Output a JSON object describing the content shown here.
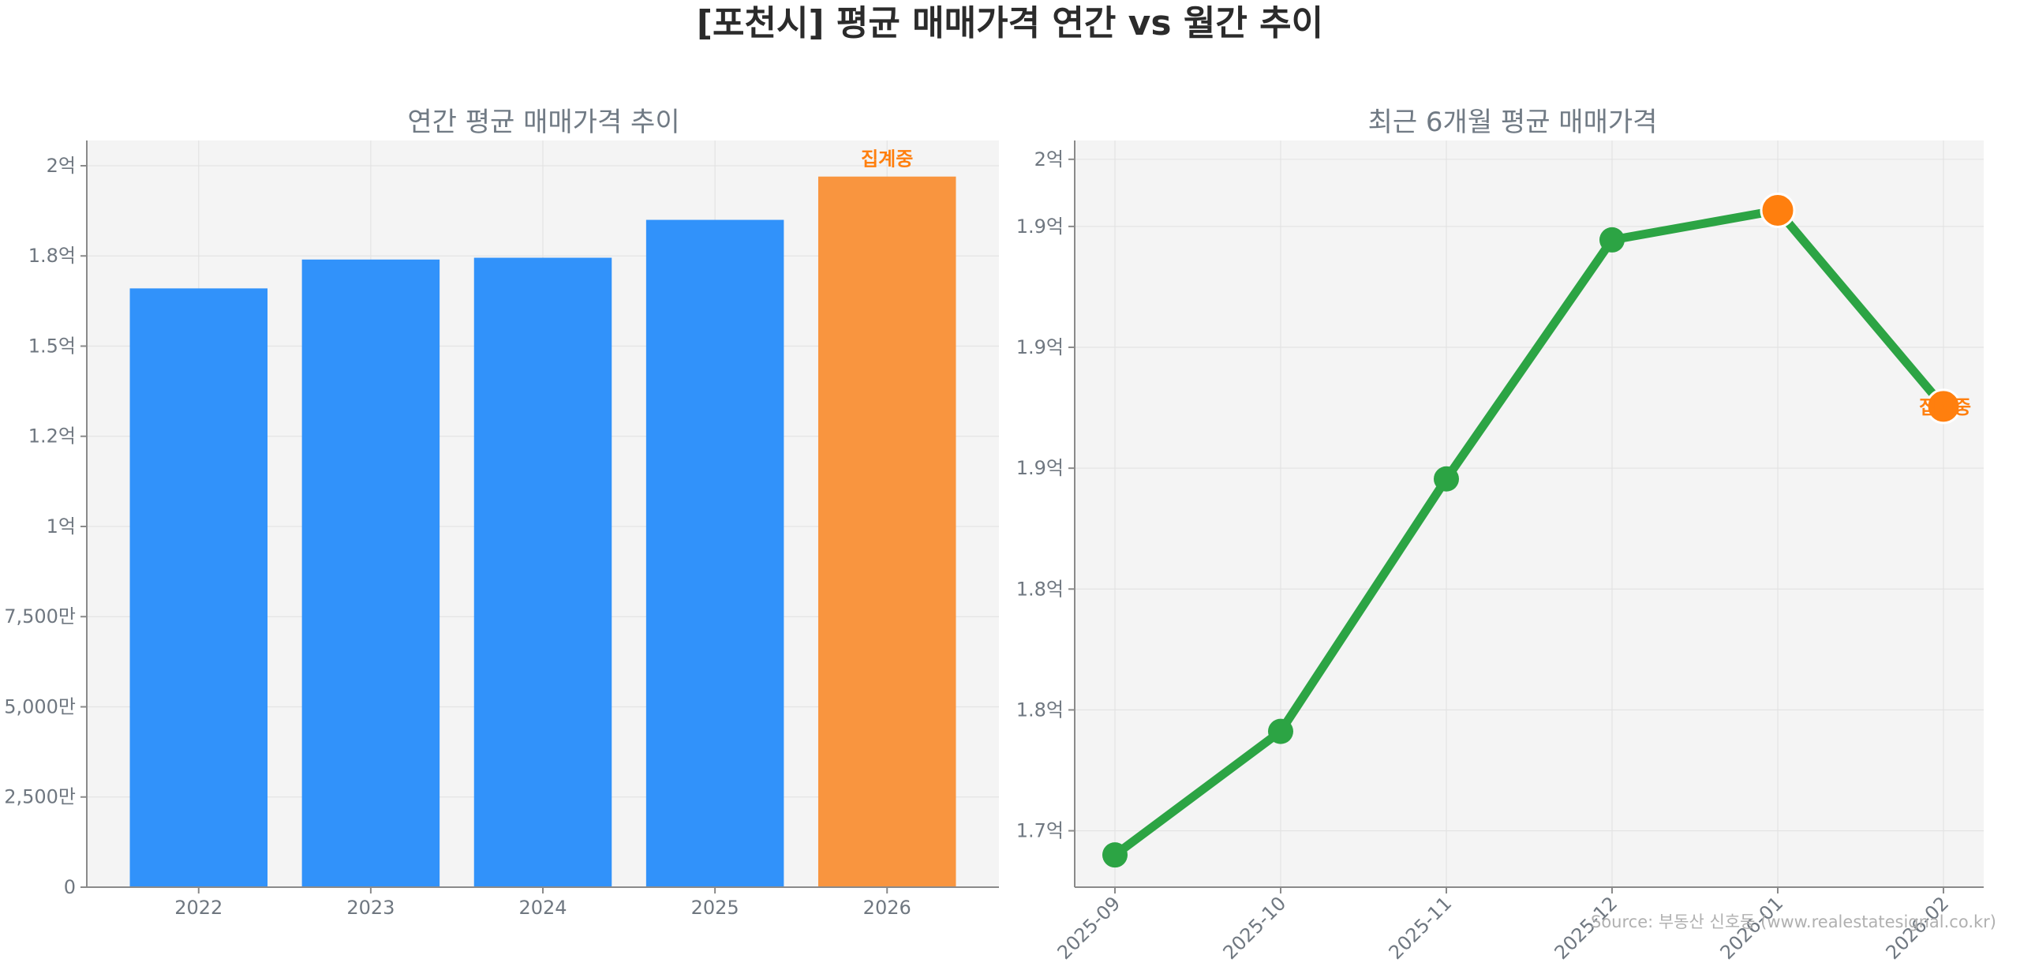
{
  "figure": {
    "title": "[포천시] 평균 매매가격 연간 vs 월간 추이",
    "source": "Source: 부동산 신호등 (www.realestatesignal.co.kr)"
  },
  "chart_data": [
    {
      "type": "bar",
      "title": "연간 평균 매매가격 추이",
      "xlabel": "",
      "ylabel": "",
      "categories": [
        "2022",
        "2023",
        "2024",
        "2025",
        "2026"
      ],
      "values": [
        166000000,
        174000000,
        174500000,
        185000000,
        197000000
      ],
      "ylim": [
        0,
        207000000
      ],
      "yticks": [
        0,
        25000000,
        50000000,
        75000000,
        100000000,
        125000000,
        150000000,
        175000000,
        200000000
      ],
      "ytick_labels": [
        "0",
        "2,500만",
        "5,000만",
        "7,500만",
        "1억",
        "1.2억",
        "1.5억",
        "1.8억",
        "2억"
      ],
      "bar_colors": [
        "#3192fa",
        "#3192fa",
        "#3192fa",
        "#3192fa",
        "#f9953f"
      ],
      "highlight_index": 4,
      "highlight_label": "집계중",
      "grid": true
    },
    {
      "type": "line",
      "title": "최근 6개월 평균 매매가격",
      "xlabel": "",
      "ylabel": "",
      "x": [
        "2025-09",
        "2025-10",
        "2025-11",
        "2025-12",
        "2026-01",
        "2026-02"
      ],
      "values": [
        170600000,
        175200000,
        184600000,
        193500000,
        194600000,
        187300000
      ],
      "ylim": [
        169400000,
        197200000
      ],
      "yticks": [
        171500000,
        176000000,
        180500000,
        185000000,
        189500000,
        194000000
      ],
      "ytick_labels": [
        "1.7억",
        "1.8억",
        "1.8억",
        "1.9억",
        "1.9억",
        "1.9억"
      ],
      "ytick_top_label": "2억",
      "ytick_top_value": 196500000,
      "line_color": "#2ca444",
      "highlight_color": "#ff7f0e",
      "highlight_indices": [
        4,
        5
      ],
      "highlight_label": "집계중",
      "grid": true
    }
  ]
}
